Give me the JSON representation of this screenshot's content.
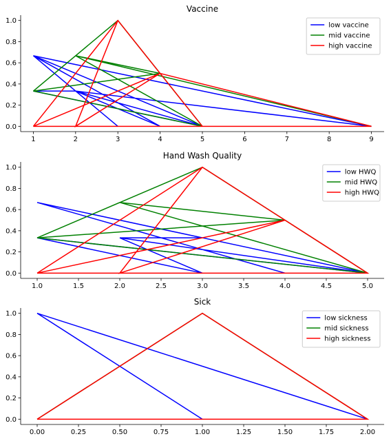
{
  "chart_data": [
    {
      "type": "line",
      "title": "Vaccine",
      "xlabel": "",
      "ylabel": "",
      "xlim": [
        0.7,
        9.3
      ],
      "ylim": [
        -0.05,
        1.05
      ],
      "xticks": [
        1,
        2,
        3,
        4,
        5,
        6,
        7,
        8,
        9
      ],
      "yticks": [
        0.0,
        0.2,
        0.4,
        0.6,
        0.8,
        1.0
      ],
      "xtick_labels": [
        "1",
        "2",
        "3",
        "4",
        "5",
        "6",
        "7",
        "8",
        "9"
      ],
      "ytick_labels": [
        "0.0",
        "0.2",
        "0.4",
        "0.6",
        "0.8",
        "1.0"
      ],
      "legend": "top-right",
      "series": [
        {
          "name": "low vaccine",
          "color": "#0000ff",
          "x": [
            1,
            3,
            1,
            4,
            2,
            5,
            2,
            9,
            1,
            5,
            1,
            2
          ],
          "y": [
            0.667,
            0.0,
            0.667,
            0.0,
            0.333,
            0.0,
            0.333,
            0.0,
            0.667,
            0.0,
            0.333,
            0.333
          ]
        },
        {
          "name": "mid vaccine",
          "color": "#008000",
          "x": [
            1,
            3,
            5,
            2,
            9,
            2,
            4,
            1,
            5,
            1,
            4,
            2,
            5,
            1
          ],
          "y": [
            0.333,
            1.0,
            0.0,
            0.667,
            0.0,
            0.667,
            0.5,
            0.333,
            0.0,
            0.333,
            0.5,
            0.667,
            0.0,
            0.333
          ]
        },
        {
          "name": "high vaccine",
          "color": "#ff0000",
          "x": [
            1,
            3,
            5,
            1,
            9,
            1,
            4,
            2,
            3,
            2,
            4,
            9,
            1,
            4,
            5,
            1,
            4,
            2
          ],
          "y": [
            0.0,
            1.0,
            0.0,
            0.0,
            0.0,
            0.0,
            0.5,
            0.0,
            1.0,
            0.0,
            0.5,
            0.0,
            0.0,
            0.5,
            0.0,
            0.0,
            0.5,
            0.0
          ]
        }
      ]
    },
    {
      "type": "line",
      "title": "Hand Wash Quality",
      "xlabel": "",
      "ylabel": "",
      "xlim": [
        0.8,
        5.2
      ],
      "ylim": [
        -0.05,
        1.05
      ],
      "xticks": [
        1.0,
        1.5,
        2.0,
        2.5,
        3.0,
        3.5,
        4.0,
        4.5,
        5.0
      ],
      "yticks": [
        0.0,
        0.2,
        0.4,
        0.6,
        0.8,
        1.0
      ],
      "xtick_labels": [
        "1.0",
        "1.5",
        "2.0",
        "2.5",
        "3.0",
        "3.5",
        "4.0",
        "4.5",
        "5.0"
      ],
      "ytick_labels": [
        "0.0",
        "0.2",
        "0.4",
        "0.6",
        "0.8",
        "1.0"
      ],
      "legend": "top-right",
      "series": [
        {
          "name": "low HWQ",
          "color": "#0000ff",
          "x": [
            1,
            5,
            1,
            4,
            1,
            3,
            2,
            5,
            2,
            3,
            1,
            5
          ],
          "y": [
            0.667,
            0.0,
            0.667,
            0.0,
            0.667,
            0.333,
            0.333,
            0.0,
            0.333,
            0.0,
            0.333,
            0.0
          ]
        },
        {
          "name": "mid HWQ",
          "color": "#008000",
          "x": [
            1,
            3,
            5,
            2,
            4,
            1,
            2,
            5,
            1,
            4,
            2,
            5,
            1,
            5
          ],
          "y": [
            0.333,
            1.0,
            0.0,
            0.667,
            0.5,
            0.333,
            0.667,
            0.0,
            0.333,
            0.5,
            0.667,
            0.0,
            0.333,
            0.0
          ]
        },
        {
          "name": "high HWQ",
          "color": "#ff0000",
          "x": [
            1,
            3,
            5,
            1,
            5,
            1,
            4,
            2,
            3,
            2,
            4,
            5,
            2,
            3,
            3,
            5
          ],
          "y": [
            0.0,
            1.0,
            0.0,
            0.0,
            0.0,
            0.0,
            0.5,
            0.0,
            1.0,
            0.0,
            0.5,
            0.0,
            0.0,
            0.0,
            0.0,
            0.0
          ]
        }
      ]
    },
    {
      "type": "line",
      "title": "Sick",
      "xlabel": "",
      "ylabel": "",
      "xlim": [
        -0.1,
        2.1
      ],
      "ylim": [
        -0.05,
        1.05
      ],
      "xticks": [
        0.0,
        0.25,
        0.5,
        0.75,
        1.0,
        1.25,
        1.5,
        1.75,
        2.0
      ],
      "yticks": [
        0.0,
        0.2,
        0.4,
        0.6,
        0.8,
        1.0
      ],
      "xtick_labels": [
        "0.00",
        "0.25",
        "0.50",
        "0.75",
        "1.00",
        "1.25",
        "1.50",
        "1.75",
        "2.00"
      ],
      "ytick_labels": [
        "0.0",
        "0.2",
        "0.4",
        "0.6",
        "0.8",
        "1.0"
      ],
      "legend": "top-right",
      "series": [
        {
          "name": "low sickness",
          "color": "#0000ff",
          "x": [
            1,
            0,
            2
          ],
          "y": [
            0.0,
            1.0,
            0.0
          ]
        },
        {
          "name": "mid sickness",
          "color": "#008000",
          "x": [
            0,
            1,
            2
          ],
          "y": [
            0.0,
            1.0,
            0.0
          ]
        },
        {
          "name": "high sickness",
          "color": "#ff0000",
          "x": [
            0,
            1,
            2,
            0,
            2
          ],
          "y": [
            0.0,
            1.0,
            0.0,
            0.0,
            0.0
          ]
        }
      ]
    }
  ]
}
